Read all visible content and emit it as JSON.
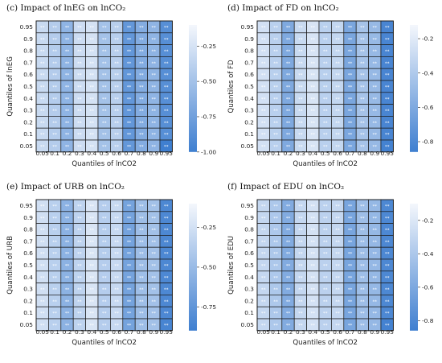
{
  "chart_data": [
    {
      "type": "heatmap",
      "title": "(c) Impact of lnEG on lnCO₂",
      "xlabel": "Quantiles of lnCO2",
      "ylabel": "Quantiles of lnEG",
      "x": [
        "0.05",
        "0.1",
        "0.2",
        "0.3",
        "0.4",
        "0.5",
        "0.6",
        "0.7",
        "0.8",
        "0.9",
        "0.95"
      ],
      "y": [
        "0.05",
        "0.1",
        "0.2",
        "0.3",
        "0.4",
        "0.5",
        "0.6",
        "0.7",
        "0.8",
        "0.9",
        "0.95"
      ],
      "column_values": [
        -0.32,
        -0.42,
        -0.6,
        -0.3,
        -0.26,
        -0.5,
        -0.4,
        -0.82,
        -0.66,
        -0.6,
        -0.88
      ],
      "bottom_right_value": -1.0,
      "cell_label": "**",
      "colorbar": {
        "min": -1.0,
        "max": -0.1,
        "ticks": [
          "-0.25",
          "-0.50",
          "-0.75",
          "-1.00"
        ],
        "tick_values": [
          -0.25,
          -0.5,
          -0.75,
          -1.0
        ]
      },
      "color_low": "#3f7fd0",
      "color_high": "#f4f7fc"
    },
    {
      "type": "heatmap",
      "title": "(d) Impact of FD on lnCO₂",
      "xlabel": "Quantiles of lnCO2",
      "ylabel": "Quantiles of FD",
      "x": [
        "0.05",
        "0.1",
        "0.2",
        "0.3",
        "0.4",
        "0.5",
        "0.6",
        "0.7",
        "0.8",
        "0.9",
        "0.95"
      ],
      "y": [
        "0.05",
        "0.1",
        "0.2",
        "0.3",
        "0.4",
        "0.5",
        "0.6",
        "0.7",
        "0.8",
        "0.9",
        "0.95"
      ],
      "column_values": [
        -0.26,
        -0.36,
        -0.6,
        -0.3,
        -0.24,
        -0.36,
        -0.32,
        -0.62,
        -0.44,
        -0.5,
        -0.82
      ],
      "bottom_right_value": -0.84,
      "cell_label": "**",
      "colorbar": {
        "min": -0.86,
        "max": -0.12,
        "ticks": [
          "-0.2",
          "-0.4",
          "-0.6",
          "-0.8"
        ],
        "tick_values": [
          -0.2,
          -0.4,
          -0.6,
          -0.8
        ]
      },
      "color_low": "#3f7fd0",
      "color_high": "#f4f7fc"
    },
    {
      "type": "heatmap",
      "title": "(e) Impact of URB on lnCO₂",
      "xlabel": "Quantiles of lnCO2",
      "ylabel": "Quantiles of URB",
      "x": [
        "0.05",
        "0.1",
        "0.2",
        "0.3",
        "0.4",
        "0.5",
        "0.6",
        "0.7",
        "0.8",
        "0.9",
        "0.95"
      ],
      "y": [
        "0.05",
        "0.1",
        "0.2",
        "0.3",
        "0.4",
        "0.5",
        "0.6",
        "0.7",
        "0.8",
        "0.9",
        "0.95"
      ],
      "column_values": [
        -0.26,
        -0.36,
        -0.56,
        -0.34,
        -0.22,
        -0.38,
        -0.3,
        -0.66,
        -0.48,
        -0.46,
        -0.84
      ],
      "bottom_right_value": -0.86,
      "cell_label": "**",
      "colorbar": {
        "min": -0.9,
        "max": -0.1,
        "ticks": [
          "-0.25",
          "-0.50",
          "-0.75"
        ],
        "tick_values": [
          -0.25,
          -0.5,
          -0.75
        ]
      },
      "color_low": "#3f7fd0",
      "color_high": "#f4f7fc"
    },
    {
      "type": "heatmap",
      "title": "(f) Impact of EDU on lnCO₂",
      "xlabel": "Quantiles of lnCO2",
      "ylabel": "Quantiles of EDU",
      "x": [
        "0.05",
        "0.1",
        "0.2",
        "0.3",
        "0.4",
        "0.5",
        "0.6",
        "0.7",
        "0.8",
        "0.9",
        "0.95"
      ],
      "y": [
        "0.05",
        "0.1",
        "0.2",
        "0.3",
        "0.4",
        "0.5",
        "0.6",
        "0.7",
        "0.8",
        "0.9",
        "0.95"
      ],
      "column_values": [
        -0.3,
        -0.4,
        -0.58,
        -0.3,
        -0.24,
        -0.34,
        -0.3,
        -0.62,
        -0.46,
        -0.5,
        -0.8
      ],
      "bottom_right_value": -0.84,
      "cell_label": "**",
      "colorbar": {
        "min": -0.86,
        "max": -0.1,
        "ticks": [
          "-0.2",
          "-0.4",
          "-0.6",
          "-0.8"
        ],
        "tick_values": [
          -0.2,
          -0.4,
          -0.6,
          -0.8
        ]
      },
      "color_low": "#3f7fd0",
      "color_high": "#f4f7fc"
    }
  ]
}
